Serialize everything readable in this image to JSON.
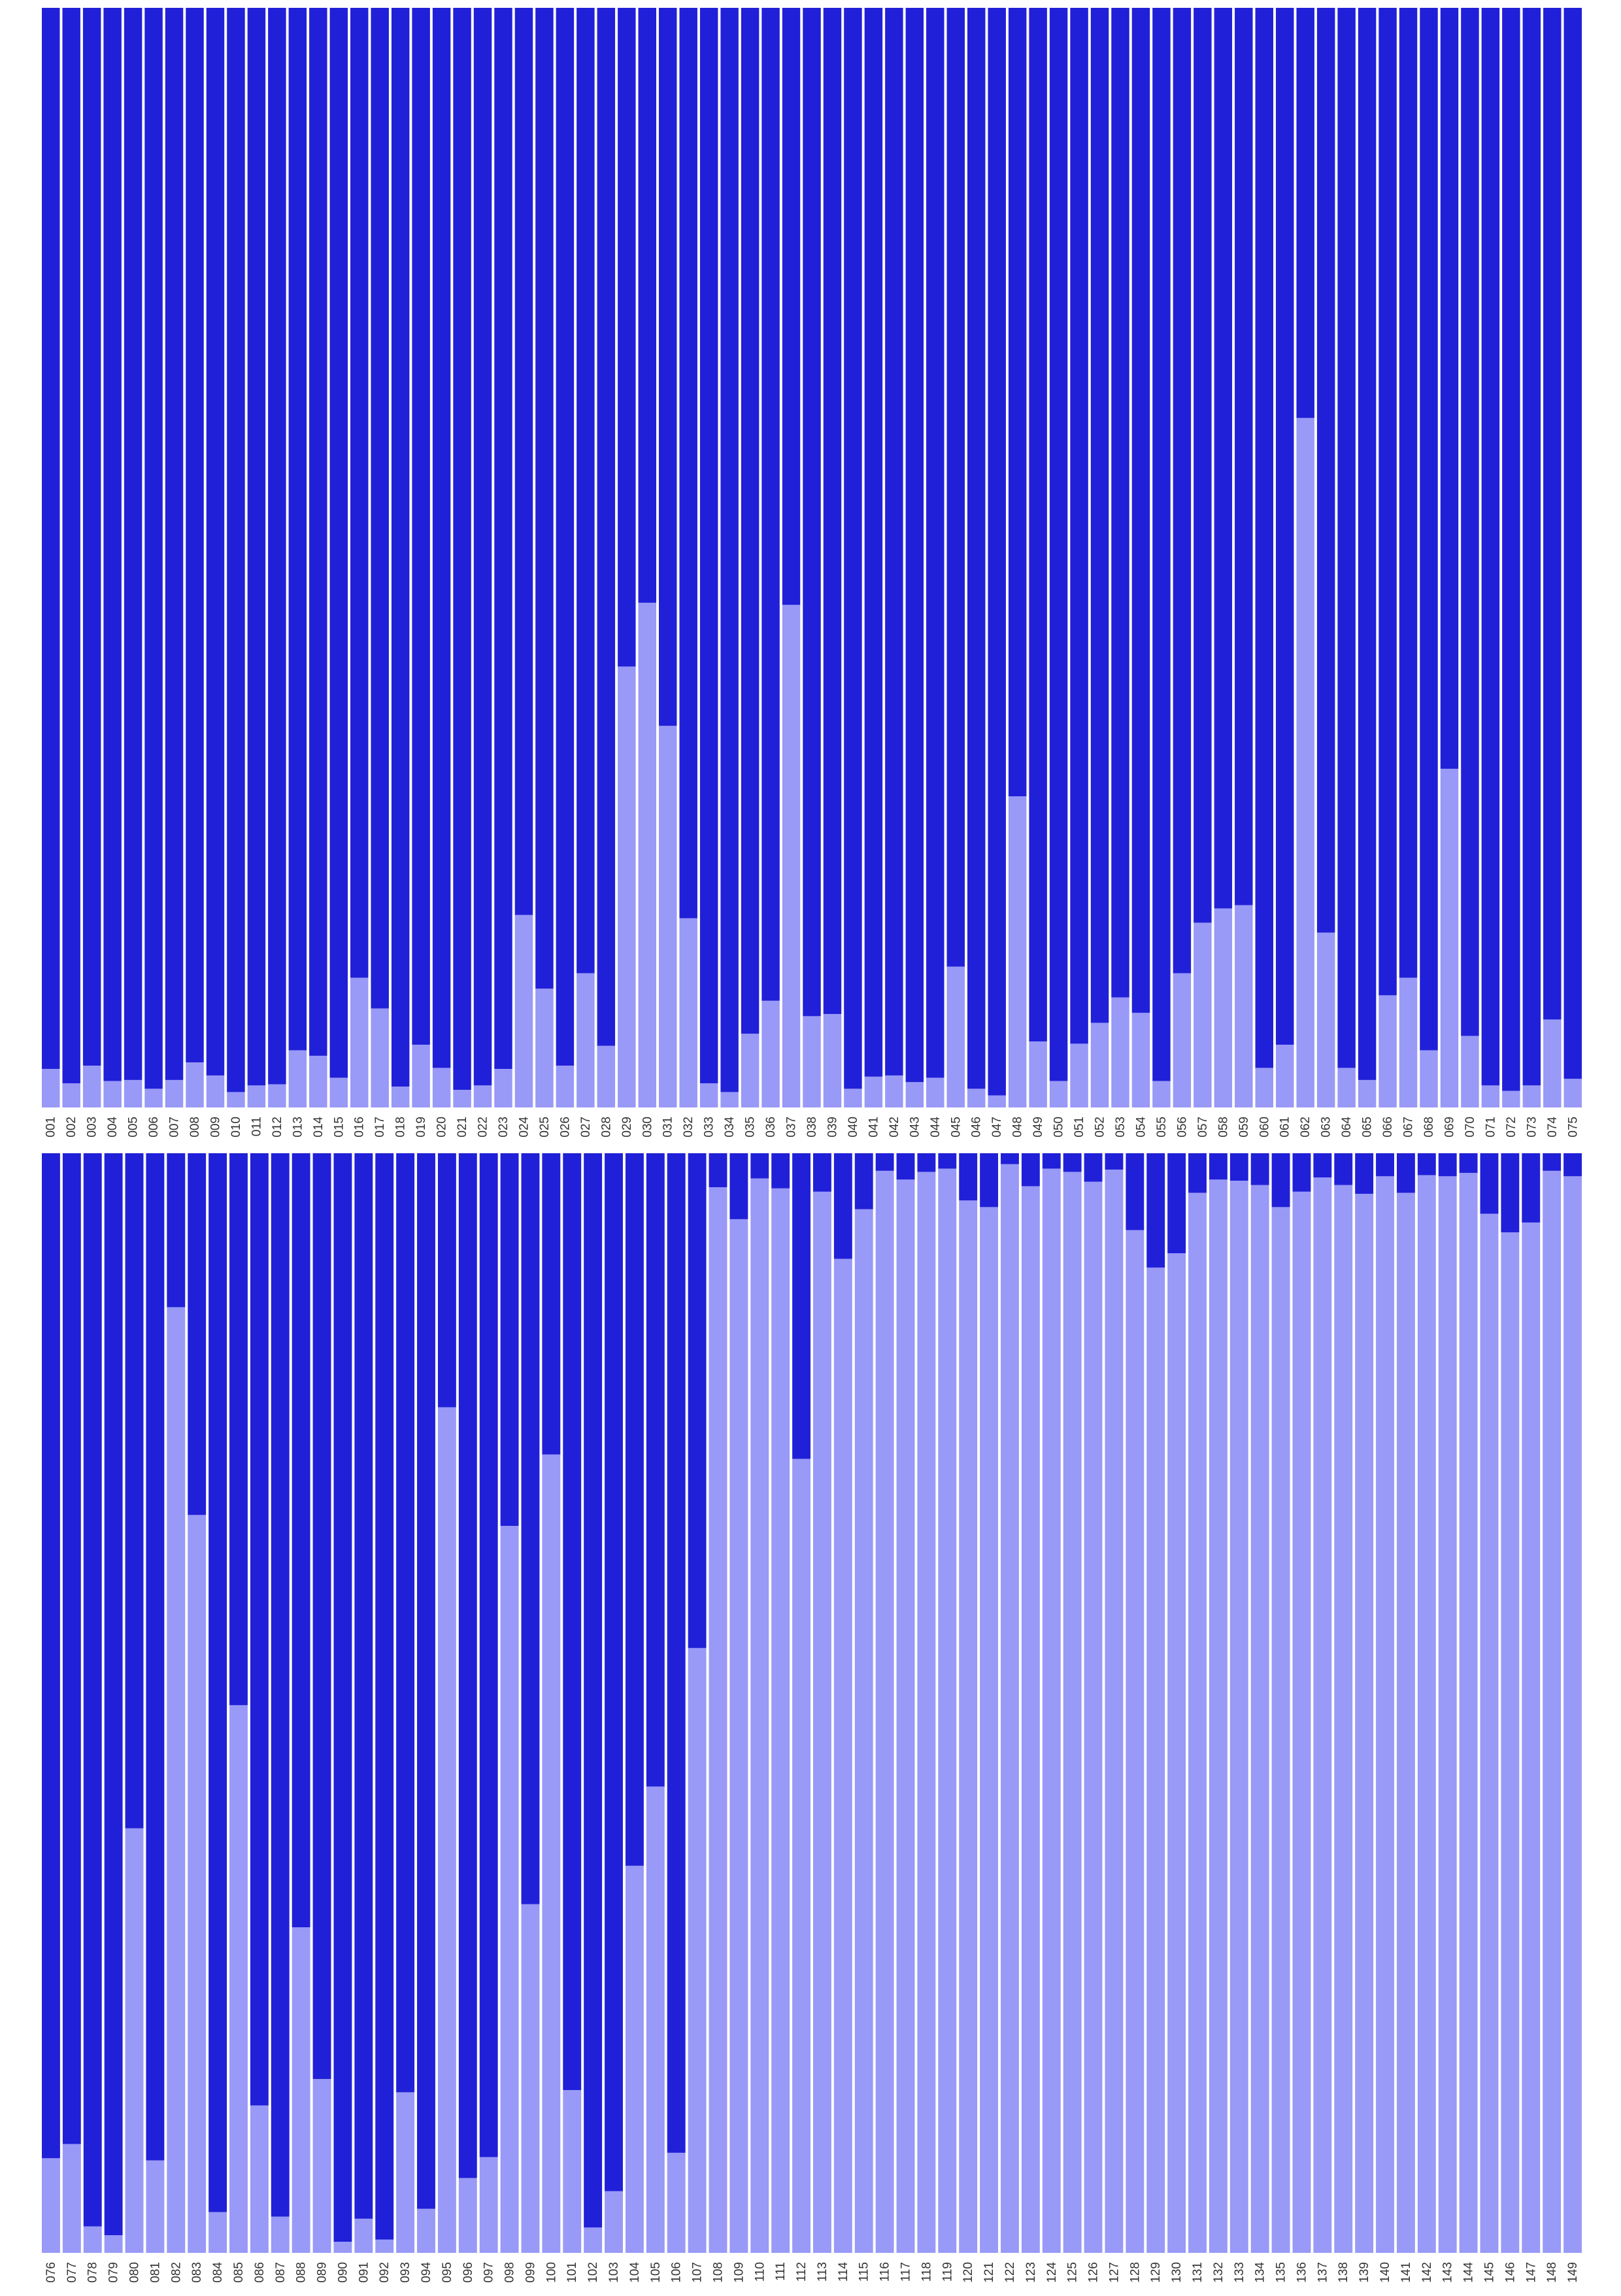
{
  "chart_data": [
    {
      "type": "bar",
      "stacked": true,
      "normalized": true,
      "categories": [
        "001",
        "002",
        "003",
        "004",
        "005",
        "006",
        "007",
        "008",
        "009",
        "010",
        "011",
        "012",
        "013",
        "014",
        "015",
        "016",
        "017",
        "018",
        "019",
        "020",
        "021",
        "022",
        "023",
        "024",
        "025",
        "026",
        "027",
        "028",
        "029",
        "030",
        "031",
        "032",
        "033",
        "034",
        "035",
        "036",
        "037",
        "038",
        "039",
        "040",
        "041",
        "042",
        "043",
        "044",
        "045",
        "046",
        "047",
        "048",
        "049",
        "050",
        "051",
        "052",
        "053",
        "054",
        "055",
        "056",
        "057",
        "058",
        "059",
        "060",
        "061",
        "062",
        "063",
        "064",
        "065",
        "066",
        "067",
        "068",
        "069",
        "070",
        "071",
        "072",
        "073",
        "074",
        "075"
      ],
      "values": [
        0.035,
        0.022,
        0.038,
        0.024,
        0.025,
        0.017,
        0.025,
        0.041,
        0.029,
        0.014,
        0.02,
        0.021,
        0.052,
        0.047,
        0.027,
        0.118,
        0.09,
        0.019,
        0.057,
        0.036,
        0.016,
        0.02,
        0.035,
        0.175,
        0.108,
        0.038,
        0.122,
        0.056,
        0.401,
        0.459,
        0.347,
        0.172,
        0.022,
        0.014,
        0.067,
        0.097,
        0.457,
        0.083,
        0.085,
        0.017,
        0.028,
        0.029,
        0.023,
        0.027,
        0.128,
        0.017,
        0.011,
        0.283,
        0.06,
        0.024,
        0.058,
        0.077,
        0.1,
        0.086,
        0.024,
        0.122,
        0.168,
        0.181,
        0.184,
        0.036,
        0.057,
        0.627,
        0.159,
        0.036,
        0.025,
        0.102,
        0.118,
        0.052,
        0.308,
        0.065,
        0.02,
        0.015,
        0.02,
        0.08,
        0.026
      ],
      "series_colors": [
        "#9999f8",
        "#2020d8"
      ],
      "ylim": [
        0,
        1
      ],
      "grid": false
    },
    {
      "type": "bar",
      "stacked": true,
      "normalized": true,
      "categories": [
        "076",
        "077",
        "078",
        "079",
        "080",
        "081",
        "082",
        "083",
        "084",
        "085",
        "086",
        "087",
        "088",
        "089",
        "090",
        "091",
        "092",
        "093",
        "094",
        "095",
        "096",
        "097",
        "098",
        "099",
        "100",
        "101",
        "102",
        "103",
        "104",
        "105",
        "106",
        "107",
        "108",
        "109",
        "110",
        "111",
        "112",
        "113",
        "114",
        "115",
        "116",
        "117",
        "118",
        "119",
        "120",
        "121",
        "122",
        "123",
        "124",
        "125",
        "126",
        "127",
        "128",
        "129",
        "130",
        "131",
        "132",
        "133",
        "134",
        "135",
        "136",
        "137",
        "138",
        "139",
        "140",
        "141",
        "142",
        "143",
        "144",
        "145",
        "146",
        "147",
        "148",
        "149"
      ],
      "values": [
        0.086,
        0.099,
        0.024,
        0.016,
        0.386,
        0.084,
        0.86,
        0.671,
        0.037,
        0.498,
        0.134,
        0.033,
        0.296,
        0.158,
        0.01,
        0.031,
        0.012,
        0.146,
        0.04,
        0.769,
        0.068,
        0.087,
        0.661,
        0.317,
        0.726,
        0.148,
        0.023,
        0.056,
        0.352,
        0.424,
        0.091,
        0.55,
        0.969,
        0.94,
        0.977,
        0.968,
        0.722,
        0.965,
        0.904,
        0.949,
        0.984,
        0.976,
        0.983,
        0.986,
        0.957,
        0.951,
        0.99,
        0.97,
        0.986,
        0.983,
        0.974,
        0.985,
        0.93,
        0.896,
        0.909,
        0.964,
        0.976,
        0.975,
        0.971,
        0.951,
        0.965,
        0.978,
        0.971,
        0.963,
        0.979,
        0.964,
        0.98,
        0.979,
        0.982,
        0.945,
        0.928,
        0.937,
        0.984,
        0.979
      ],
      "series_colors": [
        "#9999f8",
        "#2020d8"
      ],
      "ylim": [
        0,
        1
      ],
      "grid": false
    }
  ]
}
